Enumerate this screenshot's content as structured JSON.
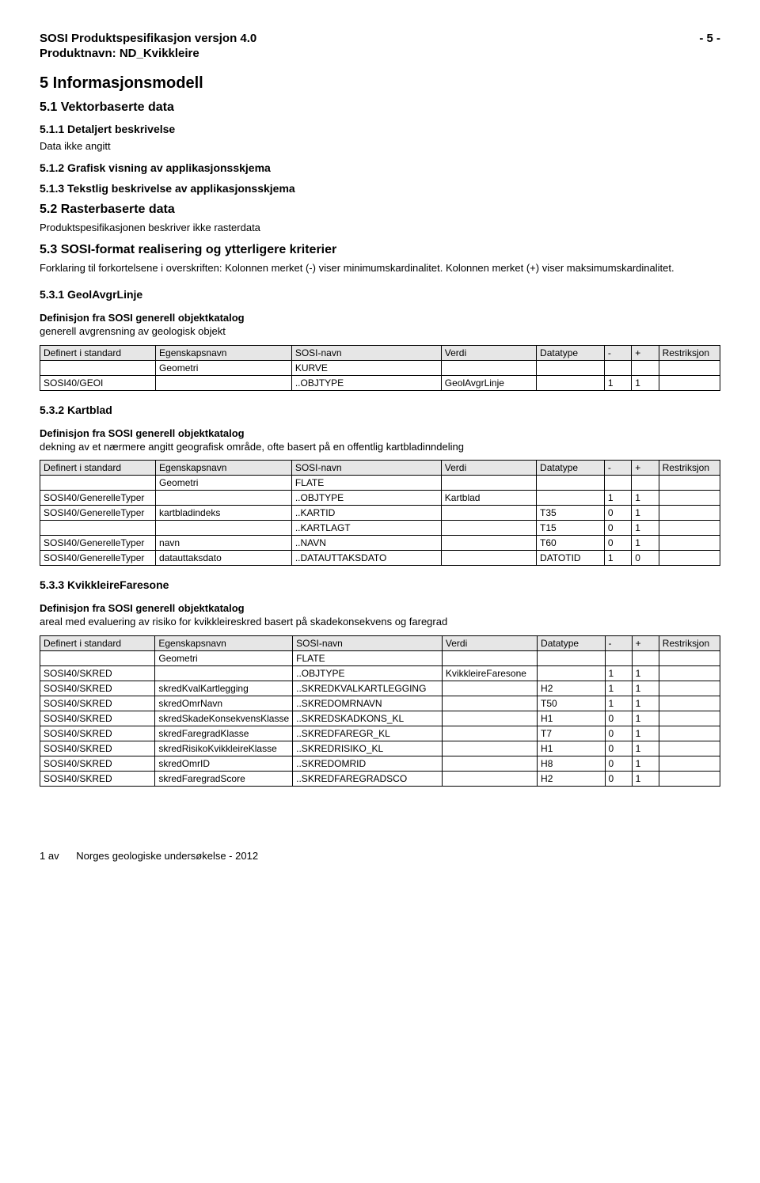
{
  "header": {
    "title_line1": "SOSI Produktspesifikasjon versjon 4.0",
    "page_marker": "- 5 -",
    "title_line2": "Produktnavn: ND_Kvikkleire"
  },
  "h1": "5  Informasjonsmodell",
  "s51": {
    "title": "5.1  Vektorbaserte data",
    "s511": "5.1.1 Detaljert beskrivelse",
    "s511_text": "Data ikke angitt",
    "s512": "5.1.2 Grafisk visning av applikasjonsskjema",
    "s513": "5.1.3 Tekstlig beskrivelse av applikasjonsskjema"
  },
  "s52": {
    "title": "5.2  Rasterbaserte data",
    "text": "Produktspesifikasjonen beskriver ikke rasterdata"
  },
  "s53": {
    "title": "5.3  SOSI-format realisering og ytterligere kriterier",
    "text": "Forklaring til forkortelsene i overskriften: Kolonnen merket (-) viser minimumskardinalitet. Kolonnen merket (+) viser maksimumskardinalitet."
  },
  "table_headers": {
    "c1": "Definert i standard",
    "c2": "Egenskapsnavn",
    "c3": "SOSI-navn",
    "c4": "Verdi",
    "c5": "Datatype",
    "c6": "-",
    "c7": "+",
    "c8": "Restriksjon"
  },
  "def_label": "Definisjon fra SOSI generell objektkatalog",
  "s531": {
    "title": "5.3.1 GeolAvgrLinje",
    "def_text": "generell avgrensning av geologisk objekt",
    "rows": [
      {
        "std": "",
        "egen": "Geometri",
        "sosi": "KURVE",
        "verdi": "",
        "dt": "",
        "m": "",
        "p": "",
        "rest": ""
      },
      {
        "std": "SOSI40/GEOI",
        "egen": "",
        "sosi": "..OBJTYPE",
        "verdi": "GeolAvgrLinje",
        "dt": "",
        "m": "1",
        "p": "1",
        "rest": ""
      }
    ]
  },
  "s532": {
    "title": "5.3.2 Kartblad",
    "def_text": "dekning av et nærmere angitt geografisk område, ofte basert på en offentlig kartbladinndeling",
    "rows": [
      {
        "std": "",
        "egen": "Geometri",
        "sosi": "FLATE",
        "verdi": "",
        "dt": "",
        "m": "",
        "p": "",
        "rest": ""
      },
      {
        "std": "SOSI40/GenerelleTyper",
        "egen": "",
        "sosi": "..OBJTYPE",
        "verdi": "Kartblad",
        "dt": "",
        "m": "1",
        "p": "1",
        "rest": ""
      },
      {
        "std": "SOSI40/GenerelleTyper",
        "egen": "kartbladindeks",
        "sosi": "..KARTID",
        "verdi": "",
        "dt": "T35",
        "m": "0",
        "p": "1",
        "rest": ""
      },
      {
        "std": "",
        "egen": "",
        "sosi": "..KARTLAGT",
        "verdi": "",
        "dt": "T15",
        "m": "0",
        "p": "1",
        "rest": ""
      },
      {
        "std": "SOSI40/GenerelleTyper",
        "egen": "navn",
        "sosi": "..NAVN",
        "verdi": "",
        "dt": "T60",
        "m": "0",
        "p": "1",
        "rest": ""
      },
      {
        "std": "SOSI40/GenerelleTyper",
        "egen": "datauttaksdato",
        "sosi": "..DATAUTTAKSDATO",
        "verdi": "",
        "dt": "DATOTID",
        "m": "1",
        "p": "0",
        "rest": ""
      }
    ]
  },
  "s533": {
    "title": "5.3.3 KvikkleireFaresone",
    "def_text": "areal med evaluering av risiko for kvikkleireskred basert på skadekonsekvens og faregrad",
    "rows": [
      {
        "std": "",
        "egen": "Geometri",
        "sosi": "FLATE",
        "verdi": "",
        "dt": "",
        "m": "",
        "p": "",
        "rest": ""
      },
      {
        "std": "SOSI40/SKRED",
        "egen": "",
        "sosi": "..OBJTYPE",
        "verdi": "KvikkleireFaresone",
        "dt": "",
        "m": "1",
        "p": "1",
        "rest": ""
      },
      {
        "std": "SOSI40/SKRED",
        "egen": "skredKvalKartlegging",
        "sosi": "..SKREDKVALKARTLEGGING",
        "verdi": "",
        "dt": "H2",
        "m": "1",
        "p": "1",
        "rest": ""
      },
      {
        "std": "SOSI40/SKRED",
        "egen": "skredOmrNavn",
        "sosi": "..SKREDOMRNAVN",
        "verdi": "",
        "dt": "T50",
        "m": "1",
        "p": "1",
        "rest": ""
      },
      {
        "std": "SOSI40/SKRED",
        "egen": "skredSkadeKonsekvensKlasse",
        "sosi": "..SKREDSKADKONS_KL",
        "verdi": "",
        "dt": "H1",
        "m": "0",
        "p": "1",
        "rest": ""
      },
      {
        "std": "SOSI40/SKRED",
        "egen": "skredFaregradKlasse",
        "sosi": "..SKREDFAREGR_KL",
        "verdi": "",
        "dt": "T7",
        "m": "0",
        "p": "1",
        "rest": ""
      },
      {
        "std": "SOSI40/SKRED",
        "egen": "skredRisikoKvikkleireKlasse",
        "sosi": "..SKREDRISIKO_KL",
        "verdi": "",
        "dt": "H1",
        "m": "0",
        "p": "1",
        "rest": ""
      },
      {
        "std": "SOSI40/SKRED",
        "egen": "skredOmrID",
        "sosi": "..SKREDOMRID",
        "verdi": "",
        "dt": "H8",
        "m": "0",
        "p": "1",
        "rest": ""
      },
      {
        "std": "SOSI40/SKRED",
        "egen": "skredFaregradScore",
        "sosi": "..SKREDFAREGRADSCO",
        "verdi": "",
        "dt": "H2",
        "m": "0",
        "p": "1",
        "rest": ""
      }
    ]
  },
  "footer": {
    "left": "1 av",
    "center": "Norges geologiske undersøkelse - 2012"
  }
}
